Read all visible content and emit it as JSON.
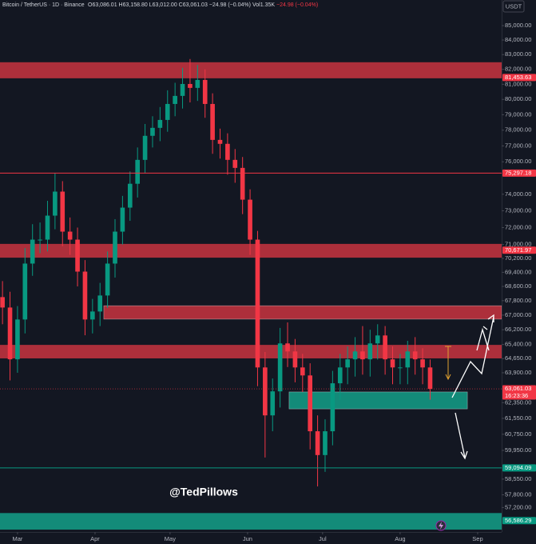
{
  "header": {
    "symbol": "Bitcoin / TetherUS · 1D · Binance",
    "ohlc": "O63,086.01 H63,158.80 L63,012.00 C63,061.03 −24.98 (−0.04%)",
    "volume": "Vol1.35K",
    "change": "−24.98 (−0.04%)",
    "currency": "USDT",
    "watermark": "@TedPillows",
    "countdown": "16:23:36"
  },
  "chart_data": {
    "type": "candlestick",
    "log": true,
    "up_color": "#089981",
    "down_color": "#f23645",
    "xlim": [
      -7,
      193.6
    ],
    "xticks": [
      {
        "value": 0,
        "label": "Mar"
      },
      {
        "value": 31,
        "label": "Apr"
      },
      {
        "value": 61,
        "label": "May"
      },
      {
        "value": 92,
        "label": "Jun"
      },
      {
        "value": 122,
        "label": "Jul"
      },
      {
        "value": 153,
        "label": "Aug"
      },
      {
        "value": 184,
        "label": "Sep"
      }
    ],
    "ylim": [
      56060,
      86810
    ],
    "yticks": [
      {
        "value": 85000,
        "label": "85,000.00"
      },
      {
        "value": 84000,
        "label": "84,000.00"
      },
      {
        "value": 83000,
        "label": "83,000.00"
      },
      {
        "value": 82000,
        "label": "82,000.00"
      },
      {
        "value": 81000,
        "label": "81,000.00"
      },
      {
        "value": 80000,
        "label": "80,000.00"
      },
      {
        "value": 79000,
        "label": "79,000.00"
      },
      {
        "value": 78000,
        "label": "78,000.00"
      },
      {
        "value": 77000,
        "label": "77,000.00"
      },
      {
        "value": 76000,
        "label": "76,000.00"
      },
      {
        "value": 74000,
        "label": "74,000.00"
      },
      {
        "value": 73000,
        "label": "73,000.00"
      },
      {
        "value": 72000,
        "label": "72,000.00"
      },
      {
        "value": 71000,
        "label": "71,000.00"
      },
      {
        "value": 70200,
        "label": "70,200.00"
      },
      {
        "value": 69400,
        "label": "69,400.00"
      },
      {
        "value": 68600,
        "label": "68,600.00"
      },
      {
        "value": 67800,
        "label": "67,800.00"
      },
      {
        "value": 67000,
        "label": "67,000.00"
      },
      {
        "value": 66200,
        "label": "66,200.00"
      },
      {
        "value": 65400,
        "label": "65,400.00"
      },
      {
        "value": 64650,
        "label": "64,650.00"
      },
      {
        "value": 63900,
        "label": "63,900.00"
      },
      {
        "value": 62350,
        "label": "62,350.00"
      },
      {
        "value": 61550,
        "label": "61,550.00"
      },
      {
        "value": 60750,
        "label": "60,750.00"
      },
      {
        "value": 59950,
        "label": "59,950.00"
      },
      {
        "value": 58550,
        "label": "58,550.00"
      },
      {
        "value": 57800,
        "label": "57,800.00"
      },
      {
        "value": 57200,
        "label": "57,200.00"
      }
    ],
    "x": [
      -6,
      -3,
      0,
      3,
      6,
      9,
      12,
      15,
      18,
      21,
      24,
      27,
      30,
      33,
      36,
      39,
      42,
      45,
      48,
      51,
      54,
      57,
      60,
      63,
      66,
      69,
      72,
      75,
      78,
      81,
      84,
      87,
      90,
      93,
      96,
      99,
      102,
      105,
      108,
      111,
      114,
      117,
      120,
      123,
      126,
      129,
      132,
      135,
      138,
      141,
      144,
      147,
      150,
      153,
      156,
      159,
      162,
      165
    ],
    "open": [
      68000,
      67420,
      64610,
      66760,
      69900,
      71290,
      71290,
      72710,
      74160,
      71760,
      71290,
      69440,
      66760,
      67200,
      68090,
      69900,
      71760,
      73190,
      74640,
      76120,
      77640,
      78150,
      78660,
      79700,
      80230,
      81020,
      80760,
      81290,
      79700,
      77380,
      77130,
      76120,
      75620,
      73670,
      71290,
      64180,
      61700,
      62930,
      65460,
      65030,
      64180,
      63760,
      60900,
      59720,
      60900,
      63350,
      64180,
      64610,
      65030,
      64610,
      65460,
      65890,
      64610,
      64180,
      64180,
      65030,
      64610,
      64180
    ],
    "high": [
      68900,
      68300,
      67500,
      70800,
      72200,
      72300,
      73600,
      75300,
      74800,
      72600,
      72000,
      70100,
      67900,
      68800,
      70600,
      72500,
      73900,
      75400,
      76900,
      78400,
      78900,
      79500,
      80600,
      81100,
      82100,
      82700,
      82300,
      82000,
      80400,
      78100,
      77800,
      76800,
      76300,
      74300,
      71800,
      65000,
      63600,
      66300,
      66600,
      65700,
      64900,
      64400,
      61700,
      61500,
      64000,
      64900,
      65300,
      65800,
      66400,
      66200,
      66500,
      66400,
      65300,
      64900,
      65600,
      65800,
      65200,
      64600
    ],
    "low": [
      66500,
      63500,
      63900,
      66000,
      69200,
      70500,
      70600,
      71900,
      70900,
      70400,
      68600,
      65900,
      66000,
      66400,
      67400,
      69100,
      71000,
      72400,
      73800,
      75300,
      76900,
      77300,
      77900,
      78900,
      79400,
      79800,
      79900,
      78800,
      76500,
      76200,
      75200,
      74700,
      72800,
      70400,
      63200,
      59600,
      60900,
      62100,
      64200,
      63400,
      62900,
      60000,
      58200,
      58900,
      60200,
      62500,
      63300,
      63700,
      63800,
      63700,
      64600,
      63800,
      63300,
      63300,
      63300,
      63800,
      63300,
      62500
    ],
    "close": [
      67420,
      64610,
      66760,
      69900,
      71290,
      71290,
      72710,
      74160,
      71760,
      71290,
      69440,
      66760,
      67200,
      68090,
      69900,
      71760,
      73190,
      74640,
      76120,
      77640,
      78150,
      78660,
      79700,
      80230,
      81020,
      80760,
      81290,
      79700,
      77380,
      77130,
      76120,
      75620,
      73670,
      71290,
      64180,
      61700,
      62930,
      65460,
      65030,
      64180,
      63760,
      60900,
      59720,
      60900,
      63350,
      64180,
      64610,
      65030,
      64610,
      65460,
      65890,
      64610,
      64180,
      64180,
      65030,
      64610,
      64180,
      63061
    ],
    "zones": [
      {
        "lo": 81400,
        "hi": 82480,
        "color": "#c93440"
      },
      {
        "lo": 70240,
        "hi": 71040,
        "color": "#c93440"
      },
      {
        "lo": 66780,
        "hi": 67520,
        "color": "#c93440",
        "start": 34.5
      },
      {
        "lo": 64660,
        "hi": 65380,
        "color": "#c93440"
      },
      {
        "lo": 62030,
        "hi": 62900,
        "color": "#14a088",
        "start": 108.6,
        "end": 179.9
      },
      {
        "lo": 56170,
        "hi": 56940,
        "color": "#14a088"
      }
    ],
    "levels": [
      {
        "value": 81453.63,
        "label": "81,453.63",
        "color": "#f23645",
        "line": false
      },
      {
        "value": 75297.18,
        "label": "75,297.18",
        "color": "#f23645",
        "line": true
      },
      {
        "value": 70671.97,
        "label": "70,671.97",
        "color": "#f23645",
        "line": false
      },
      {
        "value": 63061.03,
        "label": "63,061.03",
        "color": "#f23645",
        "line": false
      },
      {
        "value": 59094.09,
        "label": "59,094.09",
        "color": "#089981",
        "line": true
      },
      {
        "value": 56586.29,
        "label": "56,586.29",
        "color": "#089981",
        "line": false
      }
    ]
  }
}
